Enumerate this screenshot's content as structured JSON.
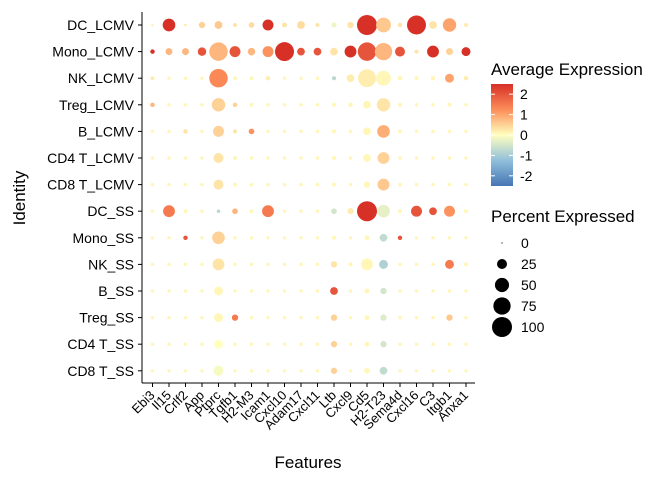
{
  "chart_data": {
    "type": "dotplot",
    "xlabel": "Features",
    "ylabel": "Identity",
    "features": [
      "Ebi3",
      "Il15",
      "Crlf2",
      "App",
      "Ptprc",
      "Tgfb1",
      "H2-M3",
      "Icam1",
      "Cxcl10",
      "Adam17",
      "Cxcl11",
      "Ltb",
      "Cxcl9",
      "Cd5",
      "H2-T23",
      "Sema4d",
      "Cxcl16",
      "C3",
      "Itgb1",
      "Anxa1"
    ],
    "identities": [
      "DC_LCMV",
      "Mono_LCMV",
      "NK_LCMV",
      "Treg_LCMV",
      "B_LCMV",
      "CD4 T_LCMV",
      "CD8 T_LCMV",
      "DC_SS",
      "Mono_SS",
      "NK_SS",
      "B_SS",
      "Treg_SS",
      "CD4 T_SS",
      "CD8 T_SS"
    ],
    "avg_expression": [
      [
        0.1,
        2.5,
        0.2,
        0.5,
        0.6,
        0.3,
        0.4,
        2.5,
        0.3,
        0.4,
        0.3,
        -0.2,
        0.3,
        2.5,
        0.6,
        0.3,
        2.5,
        0.3,
        1.0,
        0.2
      ],
      [
        2.5,
        0.8,
        0.8,
        2.0,
        0.8,
        2.0,
        0.8,
        1.2,
        2.5,
        2.0,
        2.0,
        0.3,
        2.5,
        2.0,
        0.8,
        2.0,
        0.3,
        2.5,
        0.5,
        2.5
      ],
      [
        0.2,
        0.1,
        0.1,
        0.1,
        1.3,
        0.1,
        0.1,
        0.2,
        0.1,
        0.1,
        0.1,
        -0.8,
        0.2,
        0.2,
        0.1,
        0.1,
        0.1,
        0.1,
        1.0,
        0.2
      ],
      [
        0.8,
        0.1,
        0.1,
        0.1,
        0.5,
        0.5,
        0.1,
        0.1,
        0.1,
        0.1,
        0.1,
        0.1,
        0.1,
        0.1,
        0.3,
        0.1,
        0.1,
        0.1,
        0.1,
        0.1
      ],
      [
        0.1,
        0.1,
        0.3,
        0.1,
        0.5,
        0.3,
        1.2,
        0.1,
        0.1,
        0.1,
        0.1,
        0.1,
        0.1,
        0.1,
        0.9,
        0.1,
        0.1,
        0.1,
        0.1,
        0.1
      ],
      [
        0.1,
        0.1,
        0.1,
        0.1,
        0.3,
        0.1,
        0.1,
        0.1,
        0.1,
        0.1,
        0.1,
        0.1,
        0.1,
        0.1,
        0.5,
        0.1,
        0.1,
        0.1,
        0.1,
        0.1
      ],
      [
        0.1,
        0.1,
        0.1,
        0.1,
        0.3,
        0.1,
        0.1,
        0.1,
        0.1,
        0.1,
        0.1,
        0.1,
        0.1,
        0.1,
        0.6,
        0.1,
        0.1,
        0.1,
        0.1,
        0.1
      ],
      [
        0.1,
        1.5,
        0.1,
        0.1,
        -0.8,
        0.8,
        0.1,
        1.5,
        0.1,
        0.1,
        0.1,
        -0.5,
        0.2,
        2.5,
        -0.3,
        0.1,
        2.0,
        2.0,
        1.2,
        0.1
      ],
      [
        0.1,
        0.1,
        2.0,
        0.1,
        0.5,
        0.1,
        0.1,
        0.1,
        0.1,
        0.1,
        0.1,
        0.1,
        0.1,
        0.1,
        -0.7,
        2.0,
        0.1,
        0.1,
        0.1,
        0.1
      ],
      [
        0.1,
        0.1,
        0.1,
        0.1,
        0.3,
        0.1,
        0.1,
        0.1,
        0.1,
        0.1,
        0.1,
        0.3,
        0.1,
        0.1,
        -0.9,
        0.1,
        0.1,
        0.1,
        1.5,
        0.1
      ],
      [
        0.1,
        0.1,
        0.1,
        0.1,
        0.1,
        0.1,
        0.1,
        0.1,
        0.1,
        0.1,
        0.1,
        2.0,
        0.1,
        0.1,
        -0.5,
        0.1,
        0.1,
        0.1,
        0.1,
        0.1
      ],
      [
        0.1,
        0.1,
        0.1,
        0.1,
        0.1,
        1.5,
        0.1,
        0.1,
        0.1,
        0.1,
        0.1,
        0.5,
        0.1,
        0.1,
        -0.4,
        0.1,
        0.1,
        0.1,
        0.6,
        0.1
      ],
      [
        0.1,
        0.1,
        0.1,
        0.1,
        0.0,
        0.1,
        0.1,
        0.1,
        0.1,
        0.1,
        0.1,
        0.5,
        0.1,
        0.1,
        -0.5,
        0.1,
        0.1,
        0.1,
        0.1,
        0.1
      ],
      [
        0.1,
        0.1,
        0.1,
        0.1,
        -0.1,
        0.1,
        0.1,
        0.1,
        0.1,
        0.1,
        0.1,
        0.5,
        0.1,
        0.1,
        -0.7,
        0.1,
        0.1,
        0.1,
        0.1,
        0.1
      ]
    ],
    "pct_expressed": [
      [
        2,
        40,
        2,
        10,
        15,
        4,
        8,
        30,
        6,
        15,
        4,
        6,
        10,
        100,
        55,
        5,
        90,
        15,
        45,
        4
      ],
      [
        5,
        12,
        12,
        18,
        85,
        30,
        14,
        30,
        90,
        15,
        15,
        15,
        35,
        85,
        75,
        25,
        4,
        35,
        12,
        20
      ],
      [
        4,
        3,
        3,
        3,
        85,
        4,
        4,
        5,
        3,
        3,
        3,
        4,
        15,
        80,
        55,
        6,
        4,
        5,
        20,
        5
      ],
      [
        5,
        3,
        3,
        3,
        45,
        5,
        4,
        3,
        3,
        3,
        3,
        4,
        5,
        15,
        45,
        4,
        3,
        3,
        4,
        3
      ],
      [
        3,
        3,
        5,
        3,
        30,
        4,
        8,
        3,
        3,
        3,
        3,
        4,
        3,
        15,
        40,
        4,
        3,
        3,
        3,
        3
      ],
      [
        3,
        3,
        3,
        3,
        25,
        4,
        3,
        3,
        3,
        3,
        3,
        4,
        3,
        15,
        35,
        3,
        3,
        3,
        3,
        3
      ],
      [
        3,
        3,
        3,
        3,
        25,
        4,
        3,
        3,
        3,
        3,
        3,
        4,
        3,
        10,
        35,
        3,
        3,
        3,
        3,
        3
      ],
      [
        3,
        35,
        4,
        3,
        3,
        8,
        4,
        35,
        3,
        3,
        3,
        8,
        10,
        100,
        40,
        4,
        30,
        15,
        30,
        4
      ],
      [
        3,
        3,
        5,
        3,
        40,
        3,
        3,
        3,
        3,
        3,
        3,
        4,
        3,
        6,
        15,
        5,
        3,
        3,
        3,
        3
      ],
      [
        3,
        3,
        3,
        3,
        35,
        3,
        3,
        3,
        3,
        3,
        3,
        10,
        4,
        35,
        20,
        3,
        3,
        3,
        20,
        4
      ],
      [
        3,
        3,
        3,
        3,
        20,
        3,
        3,
        3,
        3,
        3,
        3,
        15,
        3,
        6,
        10,
        3,
        3,
        3,
        3,
        3
      ],
      [
        3,
        3,
        3,
        3,
        20,
        10,
        3,
        3,
        3,
        3,
        3,
        10,
        3,
        6,
        10,
        3,
        3,
        3,
        10,
        3
      ],
      [
        3,
        3,
        3,
        3,
        20,
        3,
        3,
        3,
        3,
        3,
        3,
        10,
        3,
        6,
        10,
        3,
        3,
        3,
        3,
        3
      ],
      [
        3,
        3,
        3,
        3,
        25,
        3,
        3,
        3,
        3,
        3,
        3,
        10,
        3,
        8,
        15,
        3,
        3,
        3,
        3,
        3
      ]
    ],
    "color_legend": {
      "title": "Average Expression",
      "ticks": [
        "2",
        "1",
        "0",
        "-1",
        "-2"
      ],
      "range": [
        -2.5,
        2.5
      ]
    },
    "size_legend": {
      "title": "Percent Expressed",
      "values": [
        0,
        25,
        50,
        75,
        100
      ],
      "labels": [
        "0",
        "25",
        "50",
        "75",
        "100"
      ]
    }
  }
}
